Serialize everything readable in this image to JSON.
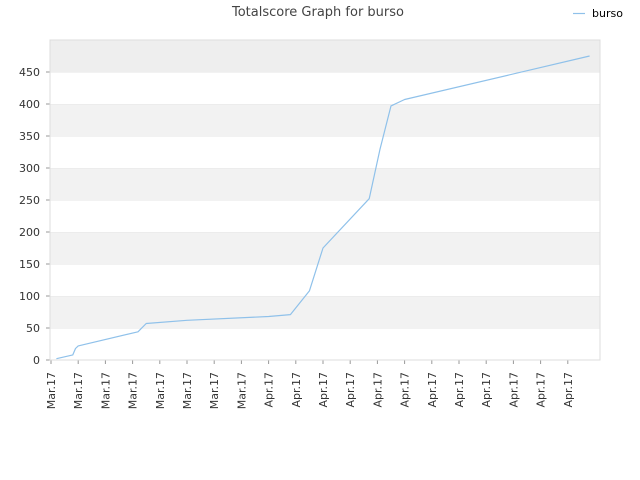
{
  "chart_data": {
    "type": "line",
    "title": "Totalscore Graph for burso",
    "xlabel": "",
    "ylabel": "",
    "ylim": [
      0,
      500
    ],
    "yticks": [
      0,
      50,
      100,
      150,
      200,
      250,
      300,
      350,
      400,
      450
    ],
    "xtick_labels": [
      "Mar.17",
      "Mar.17",
      "Mar.17",
      "Mar.17",
      "Mar.17",
      "Mar.17",
      "Mar.17",
      "Mar.17",
      "Apr.17",
      "Apr.17",
      "Apr.17",
      "Apr.17",
      "Apr.17",
      "Apr.17",
      "Apr.17",
      "Apr.17",
      "Apr.17",
      "Apr.17",
      "Apr.17",
      "Apr.17"
    ],
    "legend": {
      "position": "top-right"
    },
    "grid": true,
    "series": [
      {
        "name": "burso",
        "color": "#8fc1ea",
        "x": [
          0.2,
          0.8,
          0.9,
          1.0,
          3.2,
          3.5,
          5.0,
          8.0,
          8.8,
          9.5,
          10.0,
          11.7,
          12.1,
          12.5,
          13.0,
          19.8
        ],
        "values": [
          2,
          8,
          18,
          22,
          44,
          57,
          62,
          68,
          71,
          108,
          175,
          252,
          330,
          397,
          407,
          475
        ]
      }
    ]
  }
}
